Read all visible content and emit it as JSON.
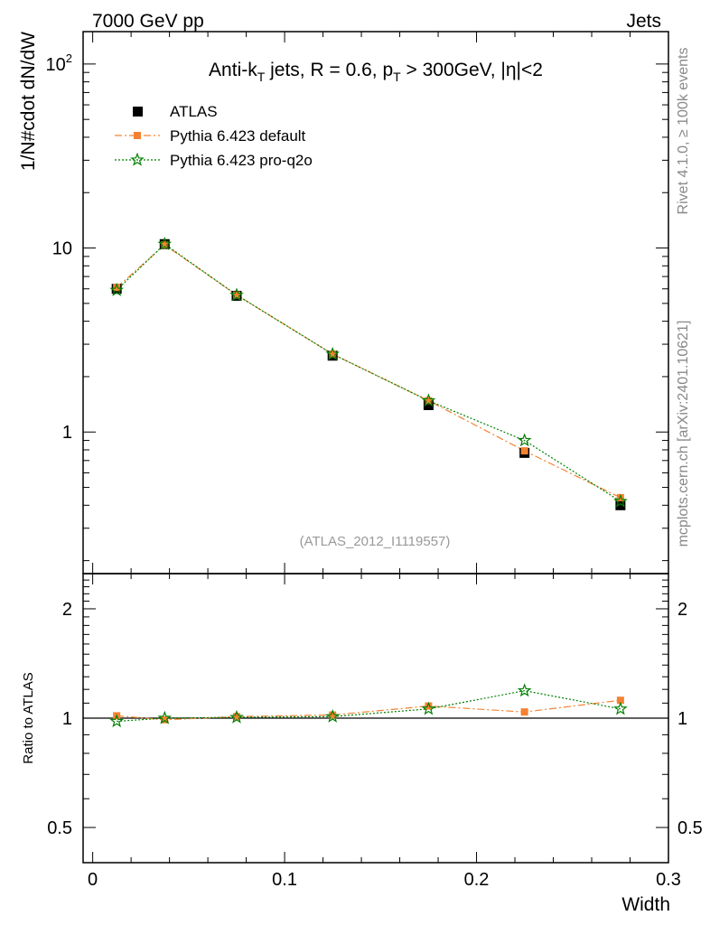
{
  "header": {
    "left": "7000 GeV pp",
    "right": "Jets"
  },
  "side_labels": {
    "rivet": "Rivet 4.1.0, ≥ 100k events",
    "mcplots": "mcplots.cern.ch [arXiv:2401.10621]"
  },
  "chart_data": {
    "type": "line",
    "title_parts": {
      "a": "Anti-k",
      "a_sub": "T",
      "b": " jets, R = 0.6, p",
      "b_sub": "T",
      "c": " > 300GeV, |η|<2"
    },
    "reference": "(ATLAS_2012_I1119557)",
    "xlabel": "Width",
    "ylabel_main": "1/N#cdot dN/dW",
    "ylabel_ratio": "Ratio to ATLAS",
    "xlim": [
      -0.005,
      0.3
    ],
    "ylim_main": [
      0.17,
      150
    ],
    "ylim_ratio": [
      0.4,
      2.5
    ],
    "x_ticks": [
      {
        "value": 0,
        "label": "0"
      },
      {
        "value": 0.1,
        "label": "0.1"
      },
      {
        "value": 0.2,
        "label": "0.2"
      },
      {
        "value": 0.3,
        "label": "0.3"
      }
    ],
    "y_ticks_main": [
      {
        "value": 1,
        "label": "1"
      },
      {
        "value": 10,
        "label": "10"
      },
      {
        "value": 100,
        "label": "10",
        "sup": "2"
      }
    ],
    "y_ticks_ratio": [
      {
        "value": 0.5,
        "label": "0.5"
      },
      {
        "value": 1,
        "label": "1"
      },
      {
        "value": 2,
        "label": "2"
      }
    ],
    "x": [
      0.0125,
      0.0375,
      0.075,
      0.125,
      0.175,
      0.225,
      0.275
    ],
    "series": [
      {
        "name": "ATLAS",
        "marker": "square",
        "color": "#000000",
        "values": [
          6.0,
          10.5,
          5.5,
          2.6,
          1.4,
          0.77,
          0.4
        ]
      },
      {
        "name": "Pythia 6.423 default",
        "marker": "filled-square",
        "color": "#f58231",
        "values": [
          6.1,
          10.4,
          5.55,
          2.65,
          1.48,
          0.79,
          0.44
        ],
        "ratio": [
          1.015,
          0.99,
          1.01,
          1.02,
          1.08,
          1.04,
          1.12
        ]
      },
      {
        "name": "Pythia 6.423 pro-q2o",
        "marker": "star",
        "color": "#008000",
        "values": [
          5.9,
          10.5,
          5.55,
          2.65,
          1.48,
          0.9,
          0.42
        ],
        "ratio": [
          0.98,
          1.0,
          1.005,
          1.01,
          1.06,
          1.19,
          1.06
        ]
      }
    ]
  }
}
